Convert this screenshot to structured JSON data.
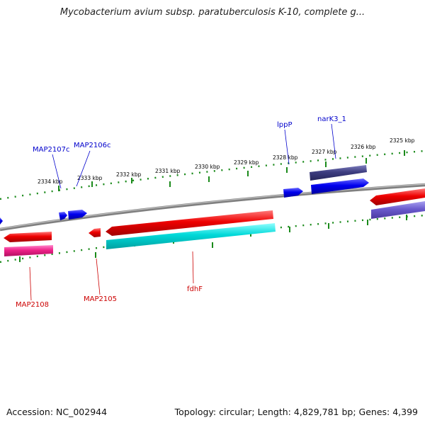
{
  "title": "Mycobacterium avium subsp. paratuberculosis K-10, complete g...",
  "footer": {
    "accession": "Accession: NC_002944",
    "topology": "Topology: circular; Length: 4,829,781 bp; Genes: 4,399"
  },
  "colors": {
    "backbone": "#808080",
    "tick": "#1a8a1a",
    "fwd_label": "#0000cc",
    "rev_label": "#cc0000",
    "gene_fwd": "#0000ee",
    "gene_rev": "#ee0000",
    "gene_fwd_dark": "#3d3d80",
    "gene_rev_magenta": "#ee2288",
    "gene_rev_cyan": "#00d8d8",
    "gene_rev_purple": "#6a5acd"
  },
  "scale_labels": [
    "2334 kbp",
    "2333 kbp",
    "2332 kbp",
    "2331 kbp",
    "2330 kbp",
    "2329 kbp",
    "2328 kbp",
    "2327 kbp",
    "2326 kbp",
    "2325 kbp"
  ],
  "gene_labels": {
    "fwd": [
      "MAP2107c",
      "MAP2106c",
      "lppP",
      "narK3_1"
    ],
    "rev": [
      "MAP2108",
      "MAP2105",
      "fdhF"
    ]
  }
}
